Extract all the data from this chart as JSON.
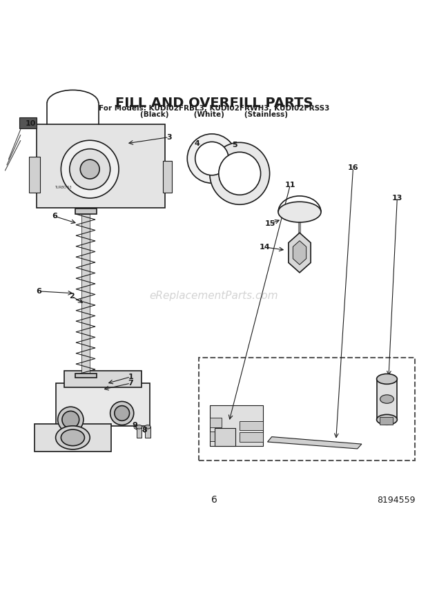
{
  "title": "FILL AND OVERFILL PARTS",
  "subtitle1": "For Models: KUDI02FRBL3, KUDI02FRWH3, KUDI02FRSS3",
  "subtitle2": "(Black)          (White)        (Stainless)",
  "page_number": "6",
  "part_number": "8194559",
  "watermark": "eReplacementParts.com",
  "bg_color": "#ffffff",
  "line_color": "#1a1a1a"
}
